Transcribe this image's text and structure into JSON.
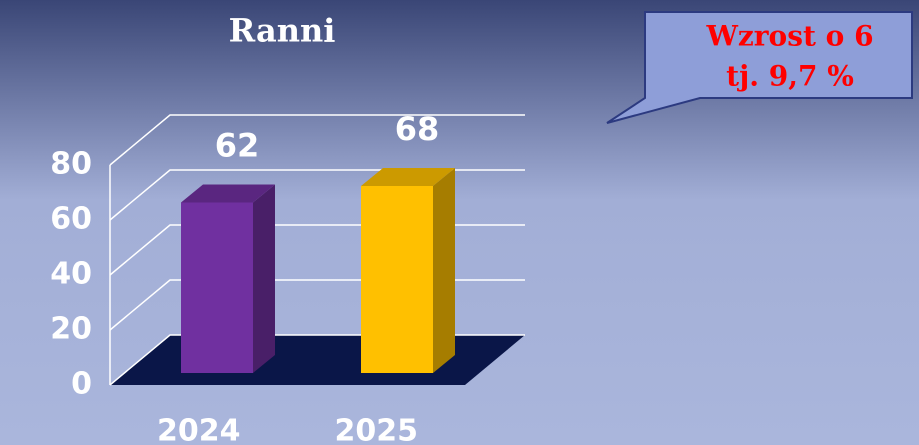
{
  "chart_data": {
    "type": "bar3d",
    "title": "Ranni",
    "annotation": [
      "Wzrost o 6",
      "tj. 9,7 %"
    ],
    "categories": [
      "2024",
      "2025"
    ],
    "values": [
      62,
      68
    ],
    "colors": [
      "#7030a0",
      "#ffc000"
    ],
    "ylim": [
      0,
      80
    ],
    "yticks": [
      0,
      20,
      40,
      60,
      80
    ],
    "grid": true
  }
}
